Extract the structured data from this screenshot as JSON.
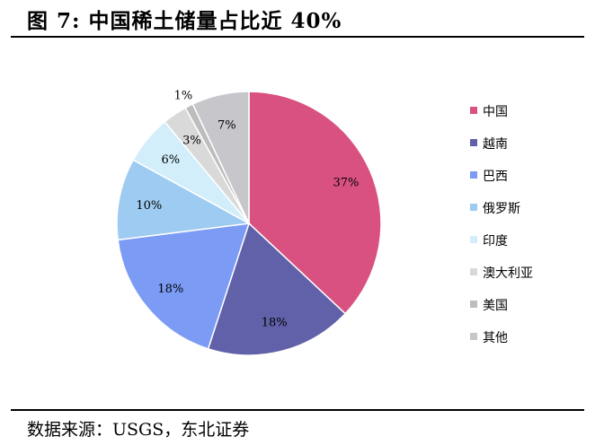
{
  "header": {
    "title": "图  7:  中国稀土储量占比近 40%"
  },
  "footer": {
    "source": "数据来源：USGS，东北证券"
  },
  "chart_data": {
    "type": "pie",
    "title": "中国稀土储量占比近 40%",
    "legend_position": "right",
    "slices": [
      {
        "name": "中国",
        "value": 37,
        "label": "37%",
        "color": "#d85180"
      },
      {
        "name": "越南",
        "value": 18,
        "label": "18%",
        "color": "#6161a9"
      },
      {
        "name": "巴西",
        "value": 18,
        "label": "18%",
        "color": "#7b9bf5"
      },
      {
        "name": "俄罗斯",
        "value": 10,
        "label": "10%",
        "color": "#9ecbf1"
      },
      {
        "name": "印度",
        "value": 6,
        "label": "6%",
        "color": "#d2eefa"
      },
      {
        "name": "澳大利亚",
        "value": 3,
        "label": "3%",
        "color": "#d9d9d9"
      },
      {
        "name": "美国",
        "value": 1,
        "label": "1%",
        "color": "#bdbdbd"
      },
      {
        "name": "其他",
        "value": 7,
        "label": "7%",
        "color": "#c6c6cb"
      }
    ]
  }
}
